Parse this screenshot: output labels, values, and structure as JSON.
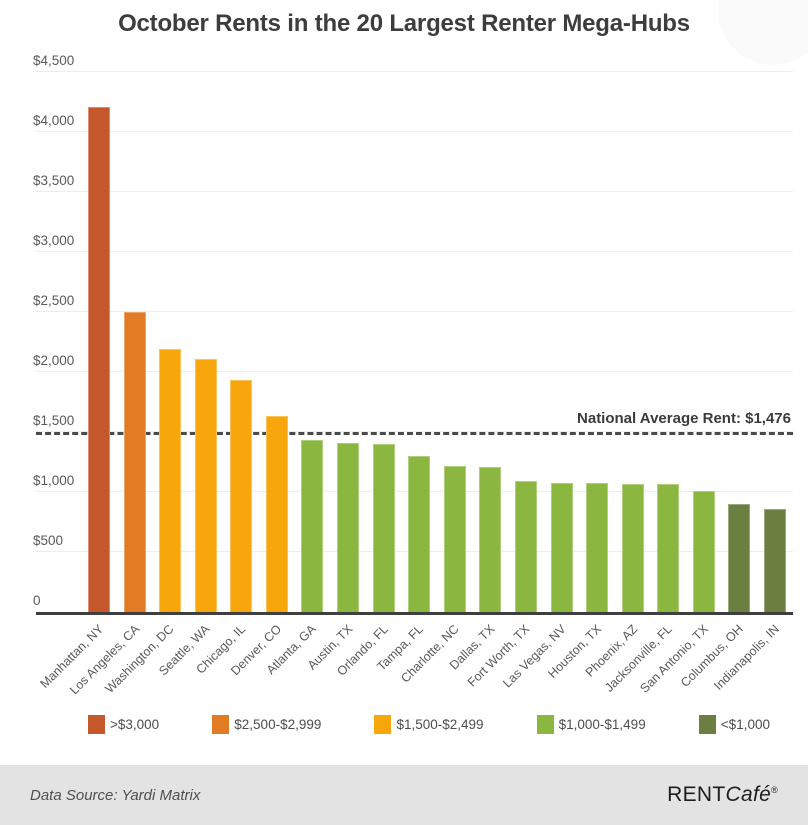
{
  "title": "October Rents in the 20 Largest Renter Mega-Hubs",
  "chart_data": {
    "type": "bar",
    "title": "October Rents in the 20 Largest Renter Mega-Hubs",
    "xlabel": "",
    "ylabel": "",
    "ylim": [
      0,
      4500
    ],
    "grid": true,
    "xlabel_rotation": -45,
    "legend_position": "bottom",
    "yticks": [
      {
        "value": 0,
        "label": "0"
      },
      {
        "value": 500,
        "label": "$500"
      },
      {
        "value": 1000,
        "label": "$1,000"
      },
      {
        "value": 1500,
        "label": "$1,500"
      },
      {
        "value": 2000,
        "label": "$2,000"
      },
      {
        "value": 2500,
        "label": "$2,500"
      },
      {
        "value": 3000,
        "label": "$3,000"
      },
      {
        "value": 3500,
        "label": "$3,500"
      },
      {
        "value": 4000,
        "label": "$4,000"
      },
      {
        "value": 4500,
        "label": "$4,500"
      }
    ],
    "categories": [
      "Manhattan, NY",
      "Los Angeles, CA",
      "Washington, DC",
      "Seattle, WA",
      "Chicago, IL",
      "Denver, CO",
      "Atlanta, GA",
      "Austin, TX",
      "Orlando, FL",
      "Tampa, FL",
      "Charlotte, NC",
      "Dallas, TX",
      "Fort Worth, TX",
      "Las Vegas, NV",
      "Houston, TX",
      "Phoenix, AZ",
      "Jacksonville, FL",
      "San Antonio, TX",
      "Columbus, OH",
      "Indianapolis, IN"
    ],
    "values": [
      4210,
      2500,
      2195,
      2105,
      1930,
      1630,
      1430,
      1405,
      1400,
      1300,
      1215,
      1205,
      1090,
      1075,
      1072,
      1070,
      1066,
      1010,
      900,
      855
    ],
    "bar_colors": [
      "#C4582B",
      "#E17C24",
      "#F7A70B",
      "#F7A70B",
      "#F7A70B",
      "#F7A70B",
      "#8BB741",
      "#8BB741",
      "#8BB741",
      "#8BB741",
      "#8BB741",
      "#8BB741",
      "#8BB741",
      "#8BB741",
      "#8BB741",
      "#8BB741",
      "#8BB741",
      "#8BB741",
      "#6B8040",
      "#6B8040"
    ],
    "average_line": {
      "value": 1476,
      "label": "National Average Rent: $1,476",
      "color": "#4a4a4a",
      "style": "dashed"
    }
  },
  "legend": {
    "items": [
      {
        "label": ">$3,000",
        "color": "#C4582B"
      },
      {
        "label": "$2,500-$2,999",
        "color": "#E17C24"
      },
      {
        "label": "$1,500-$2,499",
        "color": "#F7A70B"
      },
      {
        "label": "$1,000-$1,499",
        "color": "#8BB741"
      },
      {
        "label": "<$1,000",
        "color": "#6B8040"
      }
    ]
  },
  "footer": {
    "source": "Data Source: Yardi Matrix",
    "brand": {
      "part1": "RENT",
      "part2": "Café",
      "registered": "®"
    }
  },
  "colors": {
    "title": "#3d3d3d",
    "axis_labels": "#595959",
    "gridline": "#ededed",
    "axis_line": "#3f3f3f",
    "footer_background": "#e3e3e3"
  }
}
